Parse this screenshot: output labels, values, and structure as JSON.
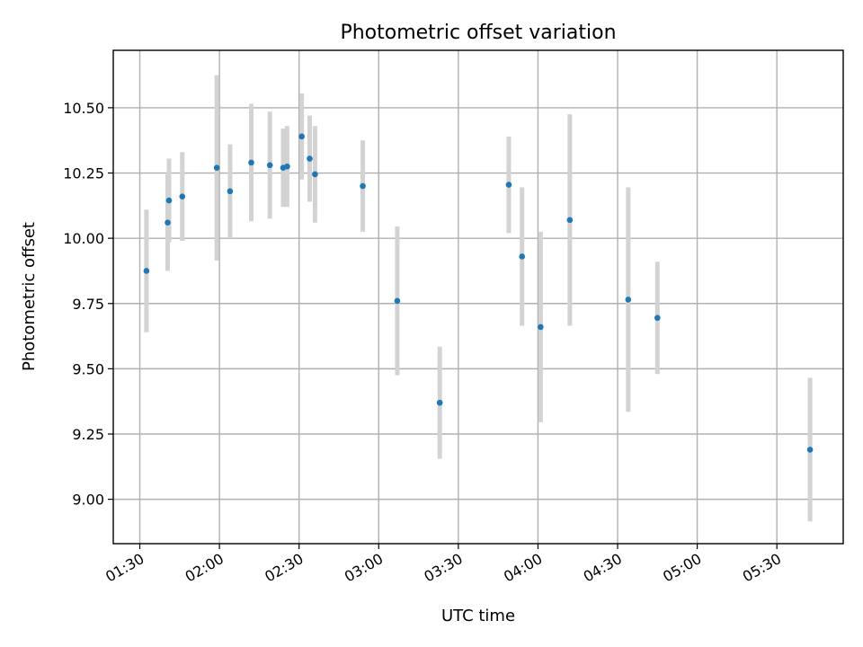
{
  "chart_data": {
    "type": "scatter",
    "title": "Photometric offset variation",
    "xlabel": "UTC time",
    "ylabel": "Photometric offset",
    "grid": true,
    "xlim": [
      "01:20",
      "05:55"
    ],
    "ylim": [
      8.83,
      10.72
    ],
    "x_ticks": [
      "01:30",
      "02:00",
      "02:30",
      "03:00",
      "03:30",
      "04:00",
      "04:30",
      "05:00",
      "05:30"
    ],
    "y_ticks": [
      "9.00",
      "9.25",
      "9.50",
      "9.75",
      "10.00",
      "10.25",
      "10.50"
    ],
    "error_bar_color": "#d3d3d3",
    "marker_color": "#1f77b4",
    "points": [
      {
        "x": "01:32:30",
        "y": 9.875,
        "err": 0.235
      },
      {
        "x": "01:40:30",
        "y": 10.06,
        "err": 0.185
      },
      {
        "x": "01:41:00",
        "y": 10.145,
        "err": 0.16
      },
      {
        "x": "01:46:00",
        "y": 10.16,
        "err": 0.17
      },
      {
        "x": "01:59:00",
        "y": 10.27,
        "err": 0.355
      },
      {
        "x": "02:04:00",
        "y": 10.18,
        "err": 0.18
      },
      {
        "x": "02:12:00",
        "y": 10.29,
        "err": 0.225
      },
      {
        "x": "02:19:00",
        "y": 10.28,
        "err": 0.205
      },
      {
        "x": "02:24:00",
        "y": 10.27,
        "err": 0.15
      },
      {
        "x": "02:25:30",
        "y": 10.275,
        "err": 0.155
      },
      {
        "x": "02:31:00",
        "y": 10.39,
        "err": 0.165
      },
      {
        "x": "02:34:00",
        "y": 10.305,
        "err": 0.165
      },
      {
        "x": "02:36:00",
        "y": 10.245,
        "err": 0.185
      },
      {
        "x": "02:54:00",
        "y": 10.2,
        "err": 0.175
      },
      {
        "x": "03:07:00",
        "y": 9.76,
        "err": 0.285
      },
      {
        "x": "03:23:00",
        "y": 9.37,
        "err": 0.215
      },
      {
        "x": "03:49:00",
        "y": 10.205,
        "err": 0.185
      },
      {
        "x": "03:54:00",
        "y": 9.93,
        "err": 0.265
      },
      {
        "x": "04:01:00",
        "y": 9.66,
        "err": 0.365
      },
      {
        "x": "04:12:00",
        "y": 10.07,
        "err": 0.405
      },
      {
        "x": "04:34:00",
        "y": 9.765,
        "err": 0.43
      },
      {
        "x": "04:45:00",
        "y": 9.695,
        "err": 0.215
      },
      {
        "x": "05:42:30",
        "y": 9.19,
        "err": 0.275
      }
    ]
  }
}
